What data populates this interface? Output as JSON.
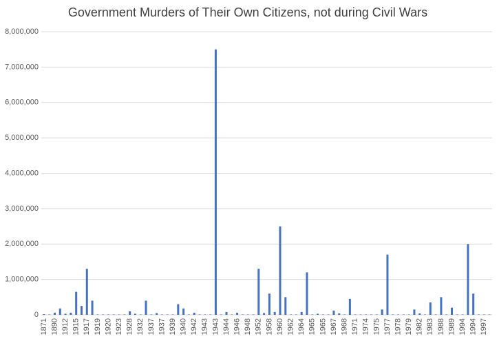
{
  "chart_data": {
    "type": "bar",
    "title": "Government Murders of Their Own Citizens, not during Civil Wars",
    "categories": [
      "1871",
      null,
      "1890",
      null,
      "1912",
      null,
      "1915",
      null,
      "1917",
      null,
      "1919",
      null,
      "1920",
      null,
      "1923",
      null,
      "1928",
      null,
      "1932",
      null,
      "1937",
      null,
      "1937",
      null,
      "1939",
      null,
      "1940",
      null,
      "1942",
      null,
      "1943",
      null,
      "1943",
      null,
      "1944",
      null,
      "1946",
      null,
      "1948",
      null,
      "1952",
      null,
      "1958",
      null,
      "1960",
      null,
      "1962",
      null,
      "1964",
      null,
      "1965",
      null,
      "1965",
      null,
      "1967",
      null,
      "1968",
      null,
      "1971",
      null,
      "1974",
      null,
      "1975",
      null,
      "1977",
      null,
      "1978",
      null,
      "1979",
      null,
      "1982",
      null,
      "1983",
      null,
      "1988",
      null,
      "1989",
      null,
      "1994",
      null,
      "1994",
      null,
      "1997",
      null
    ],
    "values": [
      20000,
      10000,
      60000,
      180000,
      30000,
      60000,
      650000,
      250000,
      1300000,
      400000,
      10000,
      10000,
      10000,
      10000,
      10000,
      10000,
      100000,
      30000,
      10000,
      400000,
      10000,
      50000,
      10000,
      10000,
      10000,
      300000,
      180000,
      10000,
      60000,
      10000,
      10000,
      10000,
      7500000,
      10000,
      80000,
      10000,
      60000,
      10000,
      10000,
      10000,
      1300000,
      50000,
      600000,
      80000,
      2500000,
      500000,
      10000,
      10000,
      80000,
      1200000,
      10000,
      30000,
      10000,
      10000,
      120000,
      40000,
      10000,
      450000,
      10000,
      10000,
      10000,
      10000,
      10000,
      150000,
      1700000,
      10000,
      10000,
      10000,
      10000,
      150000,
      40000,
      10000,
      350000,
      10000,
      500000,
      10000,
      200000,
      10000,
      10000,
      2000000,
      600000,
      10000,
      10000,
      10000
    ],
    "color": "#4472c4",
    "ylim": [
      0,
      8000000
    ],
    "yticks": [
      0,
      {
        "value": 1000000,
        "label": "1,000,000"
      },
      {
        "value": 2000000,
        "label": "2,000,000"
      },
      {
        "value": 3000000,
        "label": "3,000,000"
      },
      {
        "value": 4000000,
        "label": "4,000,000"
      },
      {
        "value": 5000000,
        "label": "5,000,000"
      },
      {
        "value": 6000000,
        "label": "6,000,000"
      },
      {
        "value": 7000000,
        "label": "7,000,000"
      },
      {
        "value": 8000000,
        "label": "8,000,000"
      }
    ],
    "grid": true
  }
}
